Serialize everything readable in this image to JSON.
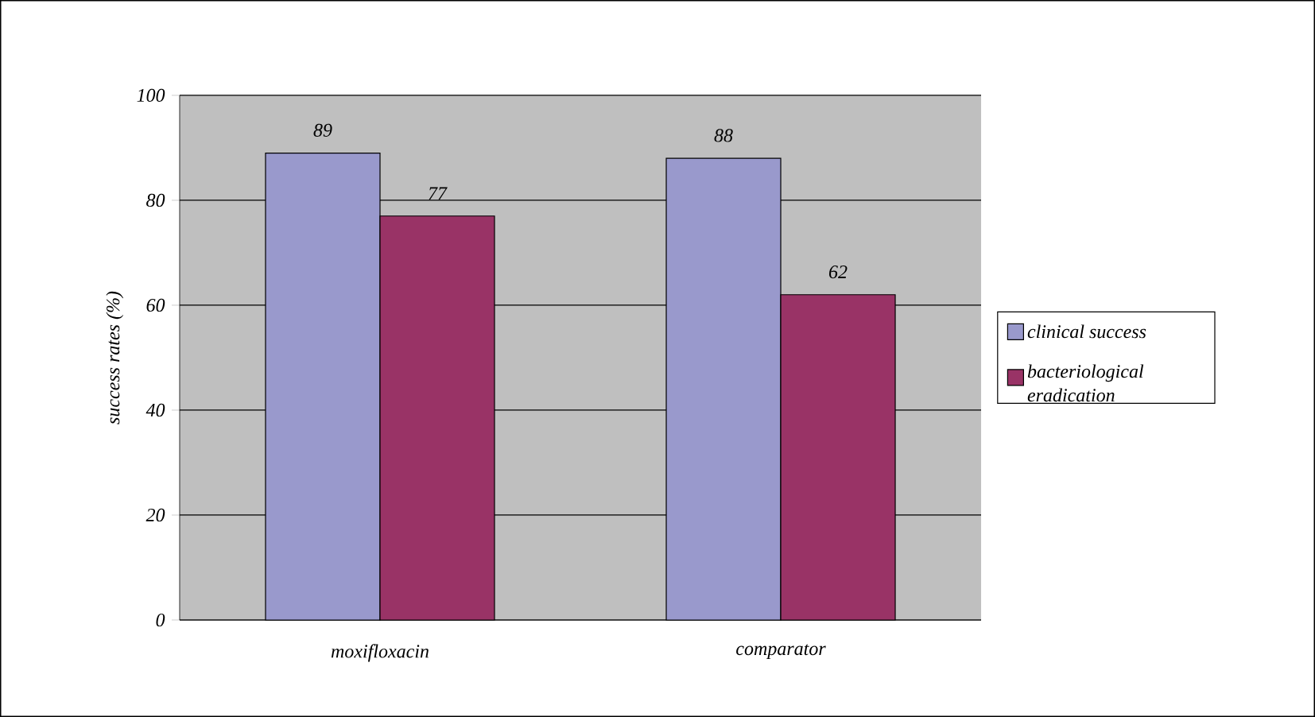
{
  "chart_data": {
    "type": "bar",
    "ylabel": "success rates (%)",
    "categories": [
      "moxifloxacin",
      "comparator"
    ],
    "series": [
      {
        "name": "clinical success",
        "color": "#9999cc",
        "values": [
          89,
          88
        ]
      },
      {
        "name": "bacteriological eradication",
        "color": "#993366",
        "values": [
          77,
          62
        ]
      }
    ],
    "ylim": [
      0,
      100
    ],
    "yticks": [
      0,
      20,
      40,
      60,
      80,
      100
    ],
    "grid": "y",
    "legend": "right",
    "data_labels": true
  }
}
